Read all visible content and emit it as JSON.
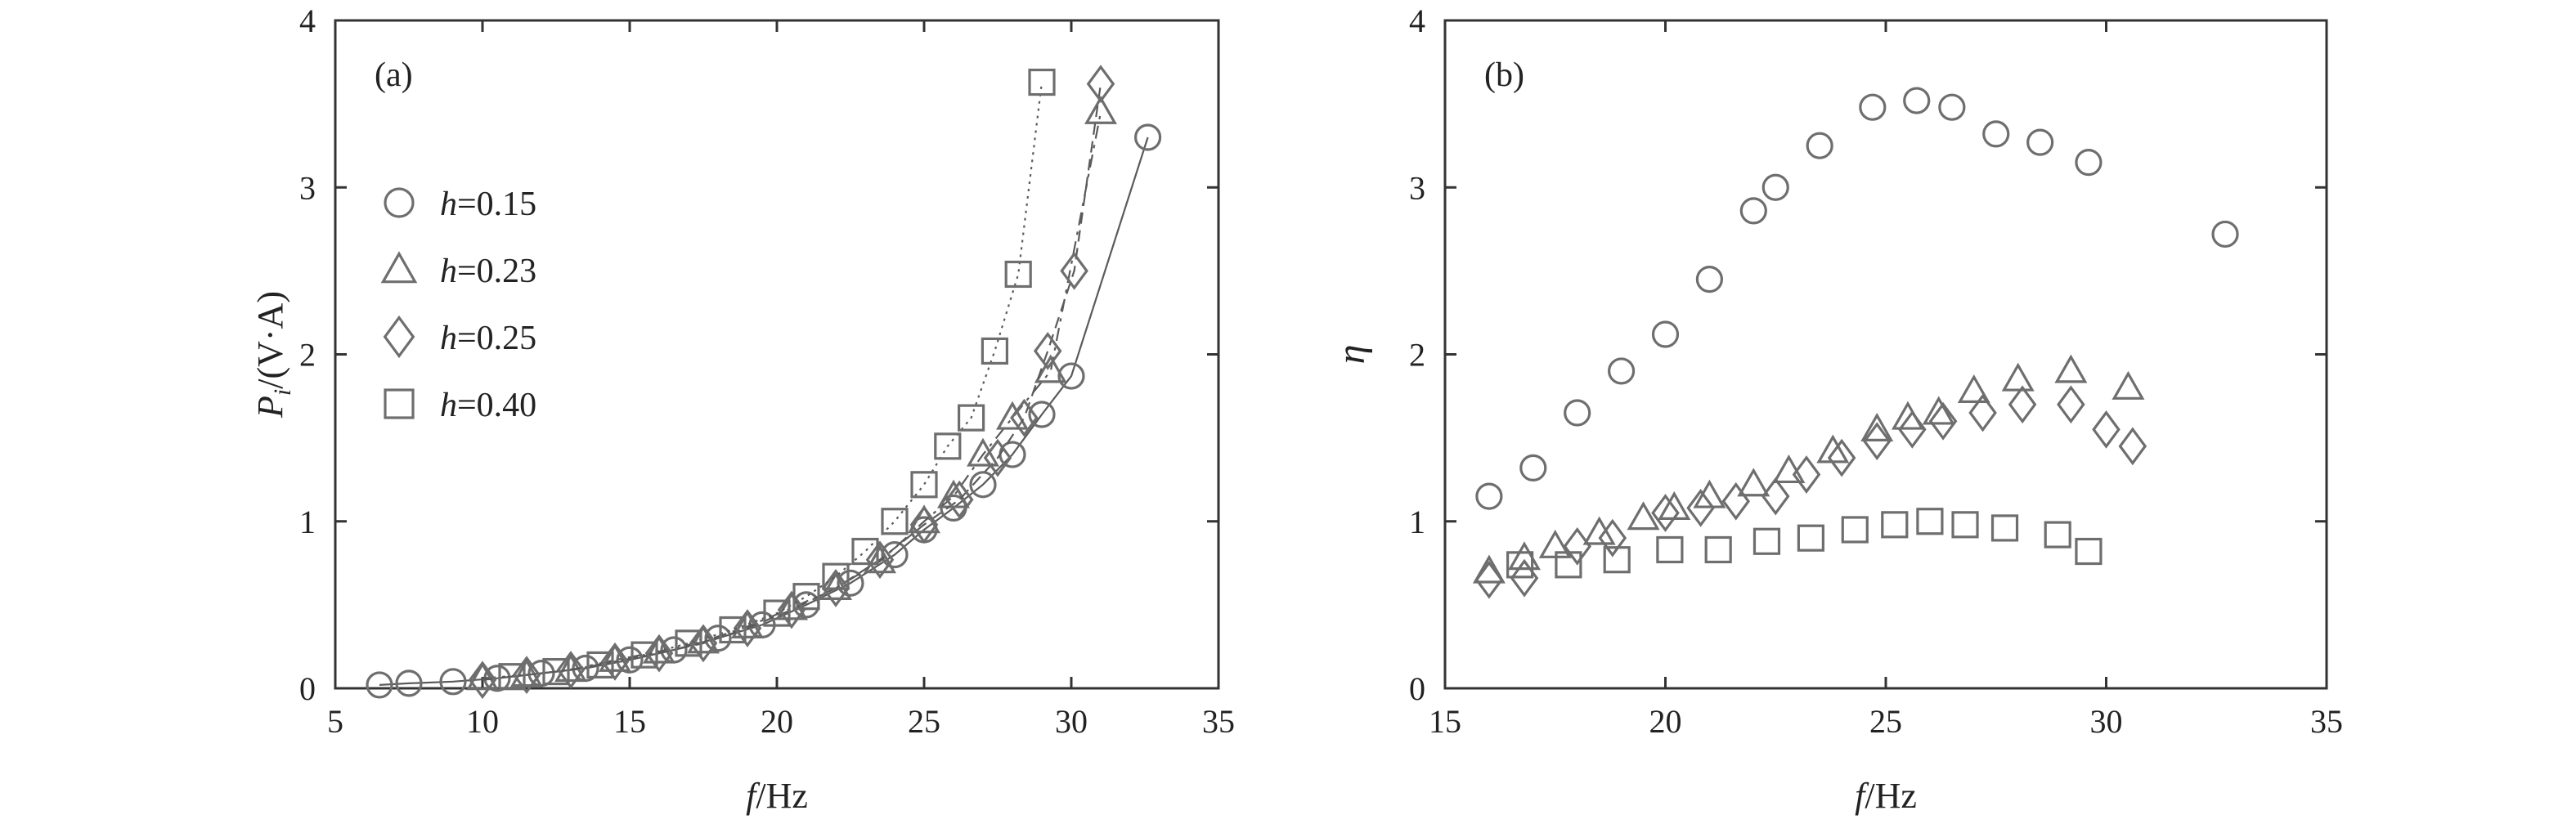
{
  "chart_data": [
    {
      "panel": "(a)",
      "type": "scatter",
      "xlabel": "f/Hz",
      "ylabel": "Pi/(V·A)",
      "xlim": [
        5,
        35
      ],
      "ylim": [
        0,
        4
      ],
      "xticks": [
        5,
        10,
        15,
        20,
        25,
        30,
        35
      ],
      "yticks": [
        0,
        1,
        2,
        3,
        4
      ],
      "legend_position": "upper-left",
      "series": [
        {
          "name": "h=0.15",
          "marker": "circle",
          "line": "solid",
          "x": [
            6.5,
            7.5,
            9,
            10.5,
            12,
            13.5,
            15,
            16.5,
            18,
            19.5,
            21,
            22.5,
            24,
            25,
            26,
            27,
            28,
            29,
            30,
            32.6
          ],
          "y": [
            0.02,
            0.03,
            0.04,
            0.06,
            0.09,
            0.12,
            0.17,
            0.23,
            0.3,
            0.38,
            0.5,
            0.63,
            0.8,
            0.95,
            1.08,
            1.22,
            1.4,
            1.64,
            1.87,
            3.3
          ]
        },
        {
          "name": "h=0.23",
          "marker": "triangle",
          "line": "dashdot",
          "x": [
            10,
            11.5,
            13,
            14.5,
            16,
            17.5,
            19,
            20.5,
            22,
            23.5,
            25,
            26,
            27,
            28,
            29.3,
            31
          ],
          "y": [
            0.06,
            0.08,
            0.11,
            0.17,
            0.22,
            0.28,
            0.37,
            0.48,
            0.6,
            0.76,
            1.0,
            1.15,
            1.4,
            1.62,
            1.9,
            3.45
          ]
        },
        {
          "name": "h=0.25",
          "marker": "diamond",
          "line": "dash",
          "x": [
            10,
            11.5,
            13,
            14.5,
            16,
            17.5,
            19,
            20.5,
            22,
            23.5,
            25,
            26.2,
            27.5,
            28.4,
            29.2,
            30.1,
            31
          ],
          "y": [
            0.05,
            0.08,
            0.11,
            0.16,
            0.21,
            0.27,
            0.36,
            0.47,
            0.6,
            0.77,
            0.98,
            1.13,
            1.38,
            1.62,
            2.02,
            2.5,
            3.62
          ]
        },
        {
          "name": "h=0.40",
          "marker": "square",
          "line": "dotted",
          "x": [
            11,
            12.5,
            14,
            15.5,
            17,
            18.5,
            20,
            21,
            22,
            23,
            24,
            25,
            25.8,
            26.6,
            27.4,
            28.2,
            29
          ],
          "y": [
            0.07,
            0.1,
            0.14,
            0.2,
            0.27,
            0.35,
            0.45,
            0.55,
            0.67,
            0.82,
            1.0,
            1.22,
            1.45,
            1.62,
            2.02,
            2.48,
            3.63
          ]
        }
      ]
    },
    {
      "panel": "(b)",
      "type": "scatter",
      "xlabel": "f/Hz",
      "ylabel": "η",
      "xlim": [
        15,
        35
      ],
      "ylim": [
        0,
        4
      ],
      "xticks": [
        15,
        20,
        25,
        30,
        35
      ],
      "yticks": [
        0,
        1,
        2,
        3,
        4
      ],
      "series": [
        {
          "name": "h=0.15",
          "marker": "circle",
          "x": [
            16,
            17,
            18,
            19,
            20,
            21,
            22,
            22.5,
            23.5,
            24.7,
            25.7,
            26.5,
            27.5,
            28.5,
            29.6,
            32.7
          ],
          "y": [
            1.15,
            1.32,
            1.65,
            1.9,
            2.12,
            2.45,
            2.86,
            3.0,
            3.25,
            3.48,
            3.52,
            3.48,
            3.32,
            3.27,
            3.15,
            2.72
          ]
        },
        {
          "name": "h=0.23",
          "marker": "triangle",
          "x": [
            16,
            16.8,
            17.5,
            18.5,
            19.5,
            20.2,
            21,
            22,
            22.8,
            23.8,
            24.8,
            25.5,
            26.2,
            27,
            28,
            29.2,
            30.5
          ],
          "y": [
            0.7,
            0.78,
            0.85,
            0.93,
            1.02,
            1.08,
            1.15,
            1.22,
            1.3,
            1.42,
            1.55,
            1.62,
            1.65,
            1.78,
            1.85,
            1.9,
            1.8
          ]
        },
        {
          "name": "h=0.25",
          "marker": "diamond",
          "x": [
            16,
            16.8,
            18,
            18.8,
            20,
            20.8,
            21.6,
            22.5,
            23.2,
            24,
            24.8,
            25.6,
            26.3,
            27.2,
            28.1,
            29.2,
            30,
            30.6
          ],
          "y": [
            0.65,
            0.66,
            0.85,
            0.9,
            1.05,
            1.08,
            1.12,
            1.15,
            1.28,
            1.38,
            1.48,
            1.55,
            1.6,
            1.65,
            1.7,
            1.7,
            1.55,
            1.45
          ]
        },
        {
          "name": "h=0.40",
          "marker": "square",
          "x": [
            16.7,
            17.8,
            18.9,
            20.1,
            21.2,
            22.3,
            23.3,
            24.3,
            25.2,
            26,
            26.8,
            27.7,
            28.9,
            29.6
          ],
          "y": [
            0.74,
            0.74,
            0.77,
            0.83,
            0.83,
            0.88,
            0.9,
            0.95,
            0.98,
            1.0,
            0.98,
            0.96,
            0.92,
            0.82
          ]
        }
      ]
    }
  ]
}
